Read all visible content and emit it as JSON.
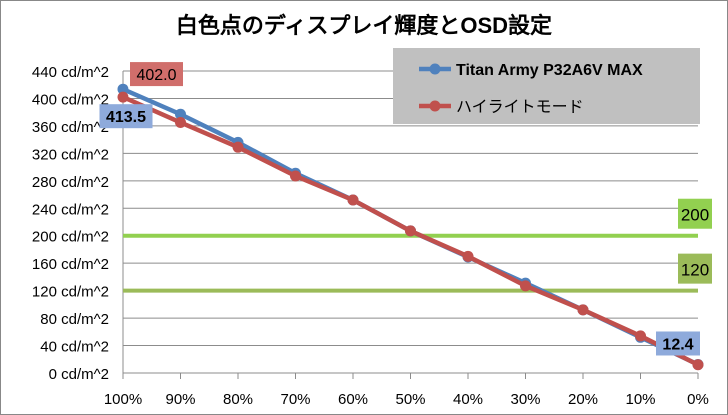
{
  "chart_data": {
    "type": "line",
    "title": "白色点のディスプレイ輝度とOSD設定",
    "xlabel": "",
    "ylabel": "",
    "categories": [
      "100%",
      "90%",
      "80%",
      "70%",
      "60%",
      "50%",
      "40%",
      "30%",
      "20%",
      "10%",
      "0%"
    ],
    "y_ticks": [
      "0 cd/m^2",
      "40 cd/m^2",
      "80 cd/m^2",
      "120 cd/m^2",
      "160 cd/m^2",
      "200 cd/m^2",
      "240 cd/m^2",
      "280 cd/m^2",
      "320 cd/m^2",
      "360 cd/m^2",
      "400 cd/m^2",
      "440 cd/m^2"
    ],
    "ylim": [
      0,
      440
    ],
    "grid": true,
    "legend_position": "top-right",
    "series": [
      {
        "name": "Titan Army P32A6V MAX",
        "color": "#4f81bd",
        "values": [
          413.5,
          377,
          336,
          291,
          252,
          207,
          169,
          131,
          92,
          52,
          12.4
        ]
      },
      {
        "name": "ハイライトモード",
        "color": "#c0504d",
        "values": [
          402.0,
          365,
          329,
          287,
          252,
          207,
          170,
          127,
          92,
          54,
          12
        ]
      }
    ],
    "data_labels": [
      {
        "text": "413.5",
        "series": 0,
        "index": 0,
        "bg": "#8eaadb"
      },
      {
        "text": "402.0",
        "series": 1,
        "index": 0,
        "bg": "#d06e6b"
      },
      {
        "text": "12.4",
        "series": 0,
        "index": 10,
        "bg": "#8eaadb"
      }
    ],
    "reference_lines": [
      {
        "value": 200,
        "label": "200",
        "color": "#92d050"
      },
      {
        "value": 120,
        "label": "120",
        "color": "#9bbb59"
      }
    ]
  }
}
